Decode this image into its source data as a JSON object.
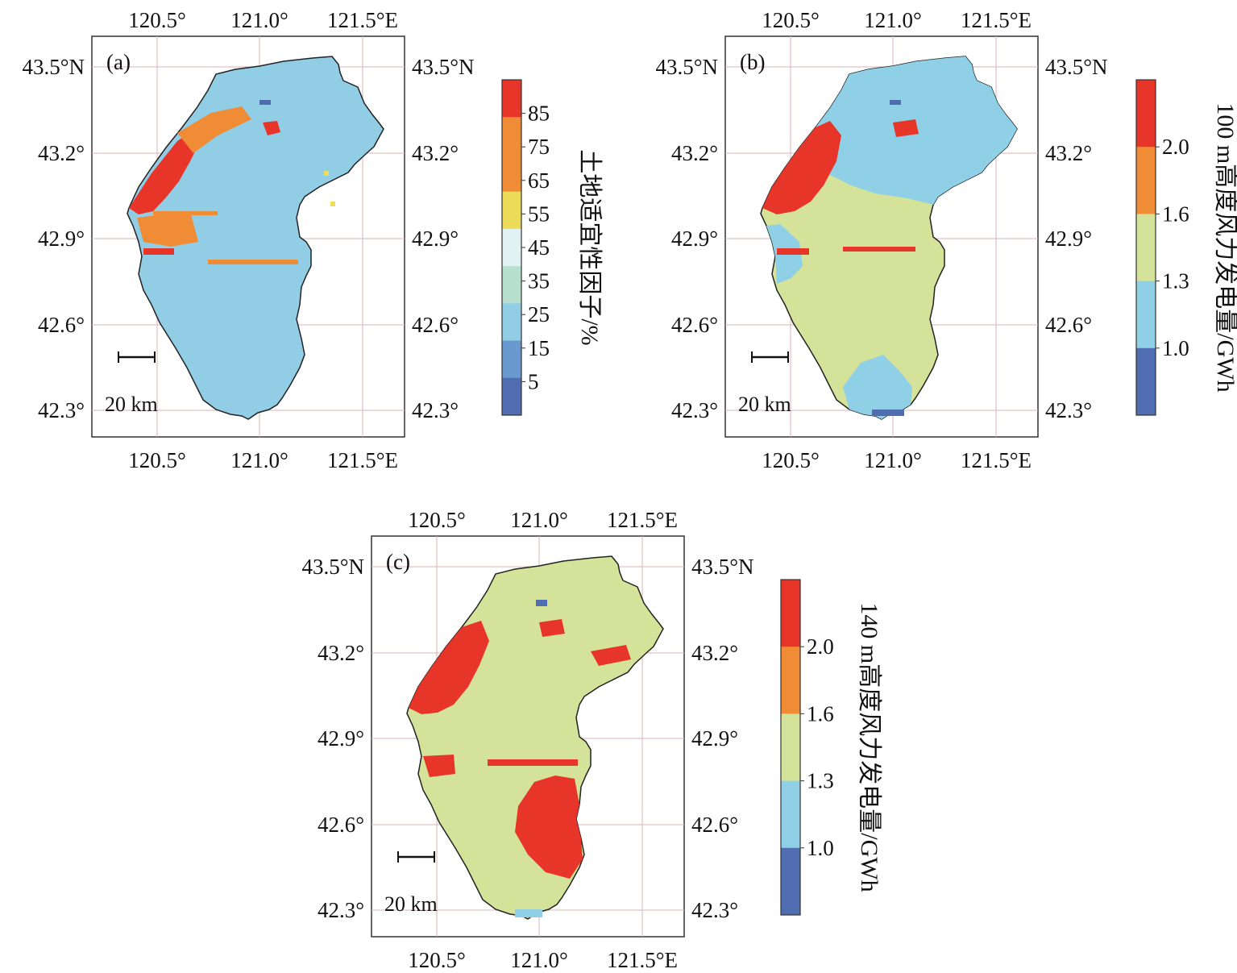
{
  "colors": {
    "c_red": "#e8352a",
    "c_orange": "#f08c35",
    "c_yellow": "#ecdc5a",
    "c_lightgreen": "#d5e39a",
    "c_lightblue": "#8fd0e6",
    "c_skyblue": "#92cde6",
    "c_blue": "#6a99cf",
    "c_darkblue": "#4f6db0",
    "c_mint": "#b7e0cf",
    "c_white": "#e2f2f2",
    "grid": "#d9b6b6",
    "outline": "#222222"
  },
  "axes": {
    "lon_labels": [
      "120.5°",
      "121.0°",
      "121.5°E"
    ],
    "lat_labels_left": [
      "43.5°N",
      "43.2°",
      "42.9°",
      "42.6°",
      "42.3°"
    ],
    "lat_labels_right": [
      "43.5°N",
      "43.2°",
      "42.9°",
      "42.6°",
      "42.3°"
    ]
  },
  "panels": [
    {
      "label": "(a)",
      "scale_text": "20 km",
      "colorbar_title": "土地适宜性因子/%",
      "colorbar_ticks": [
        "85",
        "75",
        "65",
        "55",
        "45",
        "35",
        "25",
        "15",
        "5"
      ],
      "colorbar_colors": [
        "c_red",
        "c_orange",
        "c_orange",
        "c_yellow",
        "c_white",
        "c_mint",
        "c_skyblue",
        "c_blue",
        "c_darkblue"
      ],
      "base_color": "c_skyblue"
    },
    {
      "label": "(b)",
      "scale_text": "20 km",
      "colorbar_title": "100 m高度风力发电量/GWh",
      "colorbar_ticks": [
        "2.0",
        "1.6",
        "1.3",
        "1.0"
      ],
      "colorbar_colors": [
        "c_red",
        "c_orange",
        "c_lightgreen",
        "c_lightblue",
        "c_darkblue"
      ],
      "base_color": "c_lightgreen"
    },
    {
      "label": "(c)",
      "scale_text": "20 km",
      "colorbar_title": "140 m高度风力发电量/GWh",
      "colorbar_ticks": [
        "2.0",
        "1.6",
        "1.3",
        "1.0"
      ],
      "colorbar_colors": [
        "c_red",
        "c_orange",
        "c_lightgreen",
        "c_lightblue",
        "c_darkblue"
      ],
      "base_color": "c_lightgreen"
    }
  ]
}
